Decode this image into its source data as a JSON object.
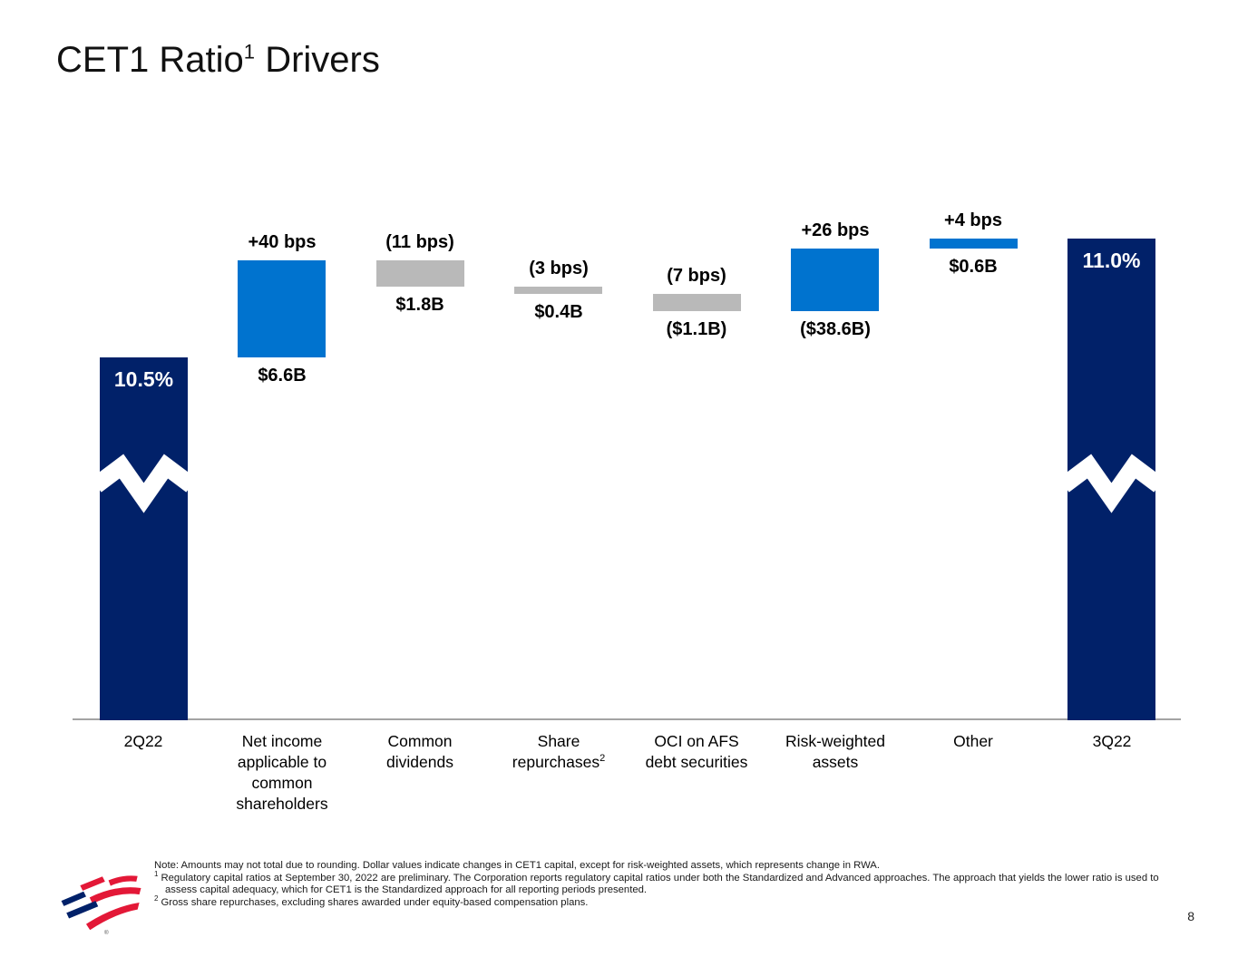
{
  "header": {
    "title_prefix": "CET1 Ratio",
    "title_sup": "1",
    "title_suffix": "Drivers"
  },
  "chart_data": {
    "type": "bar",
    "subtype": "waterfall",
    "title": "CET1 Ratio Drivers",
    "unit": "bps",
    "start_ratio_pct": 10.5,
    "end_ratio_pct": 11.0,
    "colors": {
      "total": "#012169",
      "increase": "#0073cf",
      "decrease": "#b9b9b9",
      "break_mark": "#ffffff"
    },
    "bars": [
      {
        "category": "2Q22",
        "role": "total",
        "value_label": "10.5%",
        "ratio_pct": 10.5,
        "axis_break": true
      },
      {
        "category": "Net income applicable to common shareholders",
        "role": "increase",
        "delta_bps": 40,
        "bps_label": "+40 bps",
        "amount_label": "$6.6B"
      },
      {
        "category": "Common dividends",
        "role": "decrease",
        "delta_bps": -11,
        "bps_label": "(11 bps)",
        "amount_label": "$1.8B"
      },
      {
        "category": "Share repurchases",
        "category_sup": "2",
        "role": "decrease",
        "delta_bps": -3,
        "bps_label": "(3 bps)",
        "amount_label": "$0.4B"
      },
      {
        "category": "OCI on AFS debt securities",
        "role": "decrease",
        "delta_bps": -7,
        "bps_label": "(7 bps)",
        "amount_label": "($1.1B)"
      },
      {
        "category": "Risk-weighted assets",
        "role": "increase",
        "delta_bps": 26,
        "bps_label": "+26 bps",
        "amount_label": "($38.6B)"
      },
      {
        "category": "Other",
        "role": "increase",
        "delta_bps": 4,
        "bps_label": "+4 bps",
        "amount_label": "$0.6B"
      },
      {
        "category": "3Q22",
        "role": "total",
        "value_label": "11.0%",
        "ratio_pct": 11.0,
        "axis_break": true
      }
    ]
  },
  "footnotes": [
    {
      "marker": "",
      "text": "Note: Amounts may not total due to rounding. Dollar values indicate changes in CET1 capital, except for risk-weighted assets, which represents change in RWA."
    },
    {
      "marker": "1",
      "text": "Regulatory capital ratios at September 30, 2022 are preliminary. The Corporation reports regulatory capital ratios under both the Standardized and Advanced approaches. The approach that yields the lower ratio is used to assess capital adequacy, which for CET1 is the Standardized approach for all reporting periods presented."
    },
    {
      "marker": "2",
      "text": "Gross share repurchases, excluding shares awarded under equity-based compensation plans."
    }
  ],
  "footer": {
    "page_number": "8",
    "registered_mark": "®"
  }
}
